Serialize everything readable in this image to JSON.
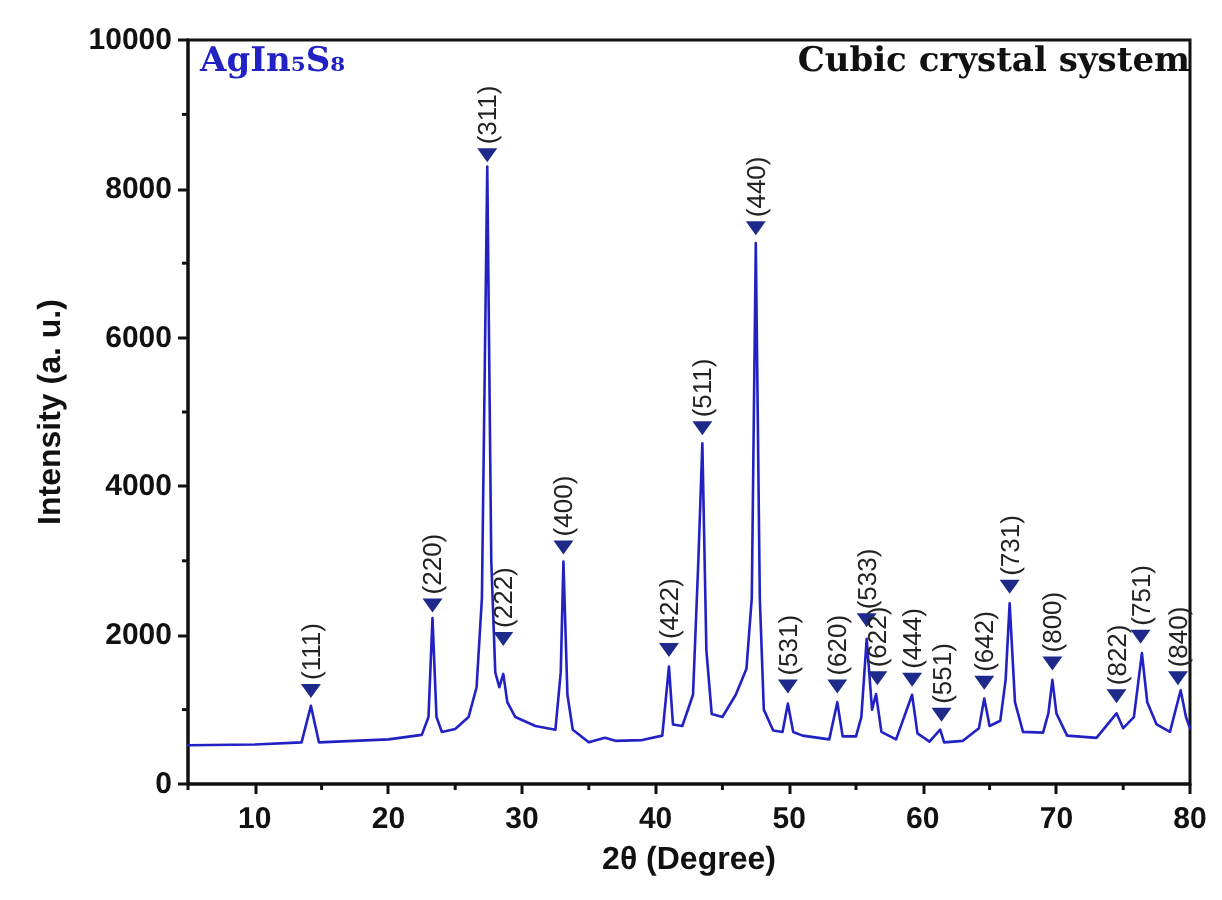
{
  "chart_data": {
    "type": "line",
    "xlabel": "2θ (Degree)",
    "ylabel": "Intensity (a. u.)",
    "xlim": [
      5,
      80
    ],
    "xticks": [
      10,
      20,
      30,
      40,
      50,
      60,
      70,
      80
    ],
    "ylim": [
      0,
      10000
    ],
    "yticks": [
      0,
      2000,
      4000,
      6000,
      8000,
      10000
    ],
    "grid": false,
    "marker": "none",
    "line_style": "solid",
    "series": [
      {
        "color": "#2121c4",
        "x": [
          5,
          10,
          13.5,
          14.2,
          14.8,
          20,
          22.5,
          23,
          23.3,
          23.6,
          24,
          25,
          26,
          26.6,
          27,
          27.4,
          27.7,
          28,
          28.3,
          28.6,
          28.9,
          29.5,
          31,
          32.5,
          32.9,
          33.1,
          33.4,
          33.8,
          35,
          36.2,
          37,
          39,
          40.5,
          41,
          41.3,
          42,
          42.8,
          43.2,
          43.5,
          43.8,
          44.2,
          45,
          46,
          46.8,
          47.2,
          47.5,
          47.8,
          48.1,
          48.8,
          49.5,
          49.9,
          50.3,
          51,
          53,
          53.6,
          54,
          55,
          55.4,
          55.8,
          56.2,
          56.5,
          56.9,
          58,
          59.2,
          59.6,
          60.5,
          61.3,
          61.6,
          63,
          64.2,
          64.6,
          65,
          65.8,
          66.2,
          66.5,
          66.9,
          67.5,
          69,
          69.4,
          69.7,
          70,
          70.8,
          73,
          74.5,
          75,
          75.8,
          76.4,
          76.8,
          77.5,
          78.5,
          79.3,
          79.7,
          80
        ],
        "values": [
          520,
          530,
          560,
          1050,
          560,
          600,
          660,
          900,
          2230,
          900,
          700,
          740,
          900,
          1300,
          2500,
          8300,
          3000,
          1500,
          1300,
          1480,
          1100,
          900,
          780,
          730,
          1500,
          2990,
          1200,
          730,
          560,
          620,
          580,
          590,
          650,
          1580,
          800,
          780,
          1200,
          3000,
          4580,
          1800,
          940,
          900,
          1200,
          1550,
          2500,
          7270,
          2500,
          1000,
          720,
          700,
          1080,
          700,
          650,
          600,
          1100,
          640,
          640,
          900,
          1950,
          1000,
          1210,
          700,
          600,
          1200,
          680,
          570,
          730,
          560,
          580,
          750,
          1150,
          780,
          850,
          1400,
          2430,
          1100,
          700,
          690,
          950,
          1400,
          950,
          650,
          620,
          950,
          750,
          900,
          1760,
          1100,
          800,
          700,
          1260,
          900,
          750
        ]
      }
    ],
    "annotations": [
      "AgIn₅S₈",
      "Cubic crystal system",
      {
        "text": "(111)",
        "x": 14.2,
        "y": 1250
      },
      {
        "text": "(220)",
        "x": 23.3,
        "y": 2400
      },
      {
        "text": "(311)",
        "x": 27.4,
        "y": 8450
      },
      {
        "text": "(222)",
        "x": 28.6,
        "y": 1950
      },
      {
        "text": "(400)",
        "x": 33.1,
        "y": 3180
      },
      {
        "text": "(422)",
        "x": 41.0,
        "y": 1800
      },
      {
        "text": "(511)",
        "x": 43.5,
        "y": 4780
      },
      {
        "text": "(440)",
        "x": 47.5,
        "y": 7470
      },
      {
        "text": "(531)",
        "x": 49.9,
        "y": 1310
      },
      {
        "text": "(620)",
        "x": 53.6,
        "y": 1310
      },
      {
        "text": "(533)",
        "x": 55.8,
        "y": 2200
      },
      {
        "text": "(622)",
        "x": 56.6,
        "y": 1420
      },
      {
        "text": "(444)",
        "x": 59.2,
        "y": 1400
      },
      {
        "text": "(551)",
        "x": 61.4,
        "y": 930
      },
      {
        "text": "(642)",
        "x": 64.6,
        "y": 1360
      },
      {
        "text": "(731)",
        "x": 66.5,
        "y": 2650
      },
      {
        "text": "(800)",
        "x": 69.7,
        "y": 1620
      },
      {
        "text": "(822)",
        "x": 74.5,
        "y": 1180
      },
      {
        "text": "(751)",
        "x": 76.3,
        "y": 1980
      },
      {
        "text": "(840)",
        "x": 79.1,
        "y": 1420
      }
    ]
  }
}
